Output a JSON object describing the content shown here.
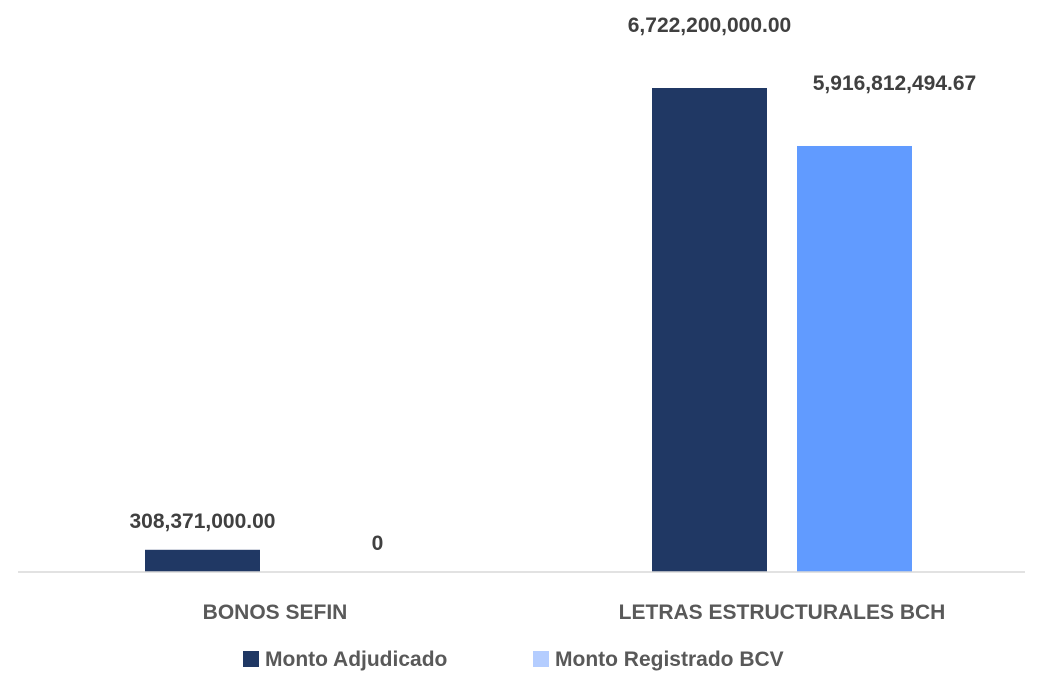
{
  "chart_data": {
    "type": "bar",
    "categories": [
      "BONOS SEFIN",
      "LETRAS ESTRUCTURALES BCH"
    ],
    "series": [
      {
        "name": "Monto Adjudicado",
        "values": [
          308371000.0,
          6722200000.0
        ],
        "labels": [
          "308,371,000.00",
          "6,722,200,000.00"
        ],
        "color": "#203864"
      },
      {
        "name": "Monto Registrado BCV",
        "values": [
          0,
          5916812494.67
        ],
        "labels": [
          "0",
          "5,916,812,494.67"
        ],
        "color": "#619BFF",
        "legend_color": "#B4CDFF"
      }
    ],
    "title": "",
    "xlabel": "",
    "ylabel": "",
    "ylim": [
      0,
      6722200000
    ],
    "grid": false,
    "legend_position": "bottom"
  }
}
